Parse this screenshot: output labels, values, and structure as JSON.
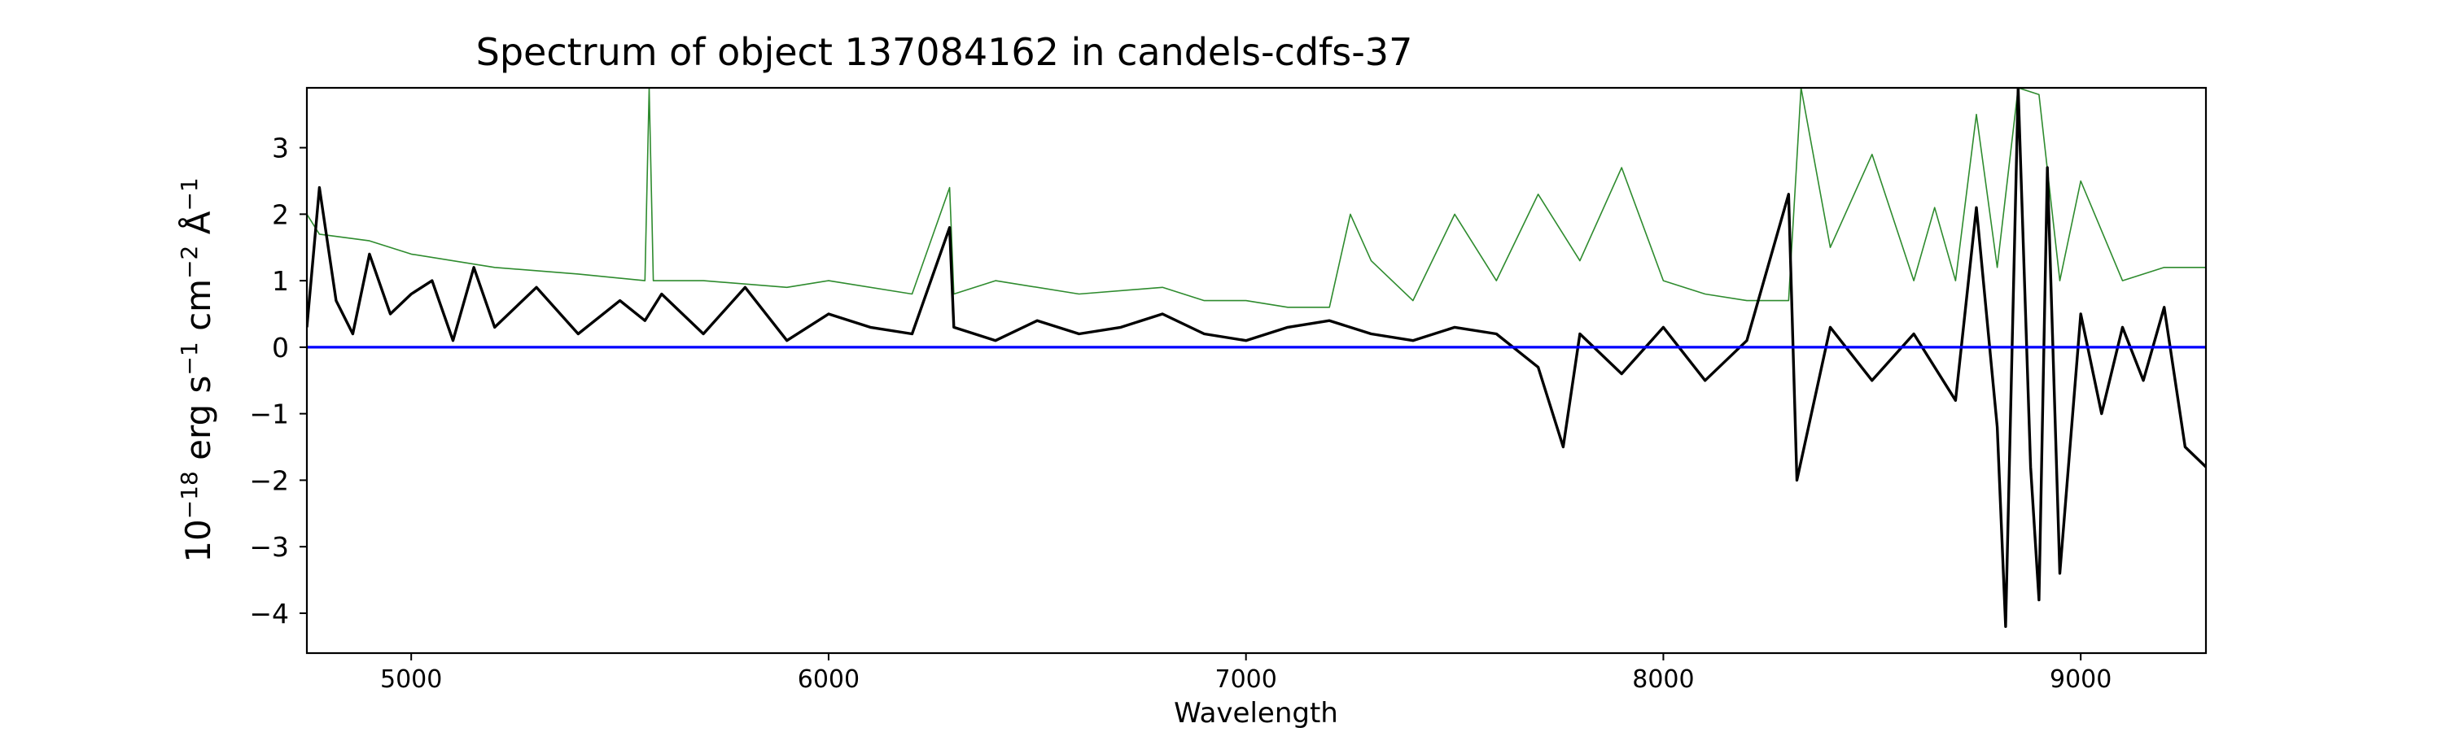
{
  "chart_data": {
    "type": "line",
    "title": "Spectrum of object 137084162 in candels-cdfs-37",
    "xlabel": "Wavelength",
    "ylabel": {
      "base": "10",
      "exp1": "−18",
      "t1": " erg s",
      "exp2": "−1",
      "t2": " cm",
      "exp3": "−2",
      "t3": " Å",
      "exp4": "−1"
    },
    "xlim": [
      4750,
      9300
    ],
    "ylim": [
      -4.6,
      3.9
    ],
    "x_ticks": [
      5000,
      6000,
      7000,
      8000,
      9000
    ],
    "y_ticks": [
      3,
      2,
      1,
      0,
      -1,
      -2,
      -3,
      -4
    ],
    "grid": false,
    "colors": {
      "flux": "#000000",
      "error": "#2e8b2e",
      "zero": "#0000ff"
    },
    "series": [
      {
        "id": "flux",
        "x": [
          4750,
          4780,
          4820,
          4860,
          4900,
          4950,
          5000,
          5050,
          5100,
          5150,
          5200,
          5300,
          5400,
          5500,
          5560,
          5600,
          5700,
          5800,
          5900,
          6000,
          6100,
          6200,
          6290,
          6300,
          6400,
          6500,
          6600,
          6700,
          6800,
          6900,
          7000,
          7100,
          7200,
          7300,
          7400,
          7500,
          7600,
          7700,
          7760,
          7800,
          7900,
          8000,
          8100,
          8200,
          8300,
          8320,
          8400,
          8500,
          8600,
          8700,
          8750,
          8800,
          8820,
          8850,
          8880,
          8900,
          8920,
          8950,
          9000,
          9050,
          9100,
          9150,
          9200,
          9250,
          9300
        ],
        "y": [
          0.3,
          2.4,
          0.7,
          0.2,
          1.4,
          0.5,
          0.8,
          1.0,
          0.1,
          1.2,
          0.3,
          0.9,
          0.2,
          0.7,
          0.4,
          0.8,
          0.2,
          0.9,
          0.1,
          0.5,
          0.3,
          0.2,
          1.8,
          0.3,
          0.1,
          0.4,
          0.2,
          0.3,
          0.5,
          0.2,
          0.1,
          0.3,
          0.4,
          0.2,
          0.1,
          0.3,
          0.2,
          -0.3,
          -1.5,
          0.2,
          -0.4,
          0.3,
          -0.5,
          0.1,
          2.3,
          -2.0,
          0.3,
          -0.5,
          0.2,
          -0.8,
          2.1,
          -1.2,
          -4.2,
          3.9,
          -1.8,
          -3.8,
          2.7,
          -3.4,
          0.5,
          -1.0,
          0.3,
          -0.5,
          0.6,
          -1.5,
          -1.8
        ]
      },
      {
        "id": "error",
        "x": [
          4750,
          4780,
          4900,
          5000,
          5200,
          5400,
          5560,
          5570,
          5580,
          5700,
          5900,
          6000,
          6200,
          6290,
          6300,
          6400,
          6600,
          6800,
          6900,
          7000,
          7100,
          7200,
          7250,
          7300,
          7400,
          7500,
          7600,
          7700,
          7800,
          7900,
          8000,
          8100,
          8200,
          8300,
          8330,
          8400,
          8500,
          8600,
          8650,
          8700,
          8750,
          8800,
          8850,
          8900,
          8950,
          9000,
          9100,
          9200,
          9300
        ],
        "y": [
          2.0,
          1.7,
          1.6,
          1.4,
          1.2,
          1.1,
          1.0,
          3.9,
          1.0,
          1.0,
          0.9,
          1.0,
          0.8,
          2.4,
          0.8,
          1.0,
          0.8,
          0.9,
          0.7,
          0.7,
          0.6,
          0.6,
          2.0,
          1.3,
          0.7,
          2.0,
          1.0,
          2.3,
          1.3,
          2.7,
          1.0,
          0.8,
          0.7,
          0.7,
          3.9,
          1.5,
          2.9,
          1.0,
          2.1,
          1.0,
          3.5,
          1.2,
          3.9,
          3.8,
          1.0,
          2.5,
          1.0,
          1.2,
          1.2
        ]
      },
      {
        "id": "zero",
        "x": [
          4750,
          9300
        ],
        "y": [
          0,
          0
        ]
      }
    ]
  }
}
